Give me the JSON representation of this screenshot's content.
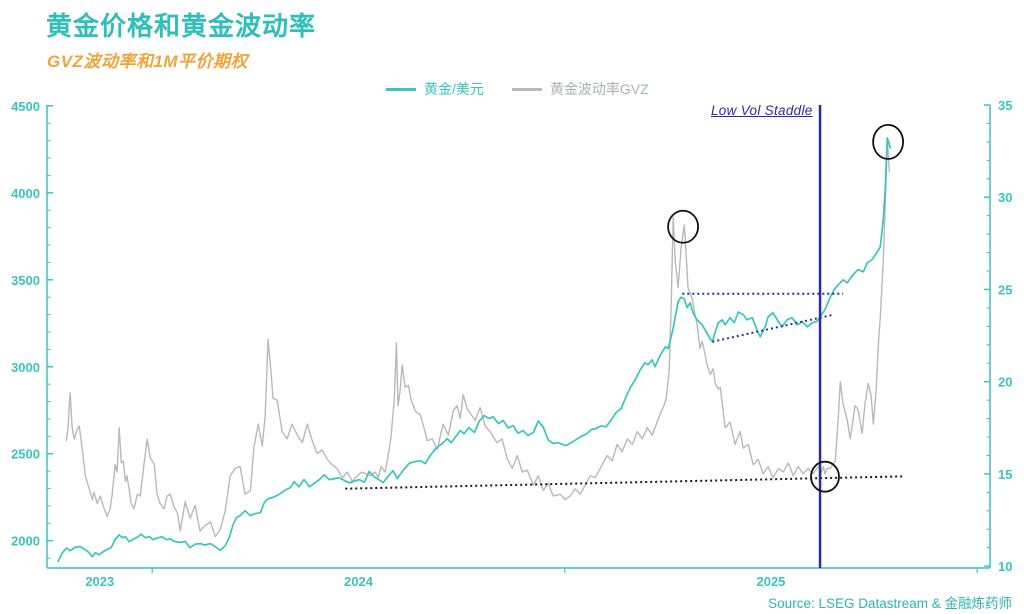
{
  "header": {
    "title": "黄金价格和黄金波动率",
    "subtitle": "GVZ波动率和1M平价期权"
  },
  "legend": {
    "items": [
      {
        "label": "黄金/美元",
        "color": "#3bc4bf",
        "text_color": "#3bc4bf"
      },
      {
        "label": "黄金波动率GVZ",
        "color": "#b9b9b9",
        "text_color": "#a9b2b2"
      }
    ]
  },
  "annotation_text": {
    "low_vol_label": "Low Vol Staddle"
  },
  "source": {
    "text": "Source: LSEG Datastream & 金融炼药师"
  },
  "colors": {
    "teal": "#2fbfba",
    "axis": "#3bc4bf",
    "gray_line": "#b9b9b9",
    "navy": "#2b2ba8",
    "black": "#1a1a1a",
    "orange": "#f0a43c"
  },
  "chart_data": {
    "type": "line",
    "title": "黄金价格和黄金波动率",
    "subtitle": "GVZ波动率和1M平价期权",
    "x_axis": {
      "range": [
        2023.745,
        2026.031
      ],
      "boundary_ticks": [
        2024,
        2025,
        2026
      ],
      "year_labels": [
        {
          "text": "2023",
          "at": 2023.873
        },
        {
          "text": "2024",
          "at": 2024.5
        },
        {
          "text": "2025",
          "at": 2025.5
        }
      ]
    },
    "left_axis": {
      "range": [
        1843,
        4505
      ],
      "major_ticks": [
        2000,
        2500,
        3000,
        3500,
        4000,
        4500
      ],
      "minor_start": 1900,
      "minor_step": 100
    },
    "right_axis": {
      "range": [
        9.9,
        35.0
      ],
      "major_ticks": [
        10,
        15,
        20,
        25,
        30,
        35
      ],
      "minor_start": 10,
      "minor_step": 1
    },
    "series": [
      {
        "name": "黄金波动率GVZ",
        "axis": "right",
        "color": "#b9b9b9",
        "width": 1.4,
        "x": [
          2023.792,
          2023.796,
          2023.801,
          2023.806,
          2023.811,
          2023.818,
          2023.823,
          2023.828,
          2023.838,
          2023.847,
          2023.855,
          2023.859,
          2023.867,
          2023.874,
          2023.884,
          2023.891,
          2023.898,
          2023.903,
          2023.91,
          2023.915,
          2023.92,
          2023.925,
          2023.93,
          2023.935,
          2023.939,
          2023.944,
          2023.949,
          2023.956,
          2023.964,
          2023.971,
          2023.981,
          2023.988,
          2023.995,
          2024.005,
          2024.012,
          2024.019,
          2024.029,
          2024.036,
          2024.044,
          2024.053,
          2024.061,
          2024.068,
          2024.08,
          2024.092,
          2024.104,
          2024.116,
          2024.128,
          2024.141,
          2024.153,
          2024.165,
          2024.177,
          2024.189,
          2024.201,
          2024.213,
          2024.225,
          2024.238,
          2024.247,
          2024.257,
          2024.267,
          2024.274,
          2024.281,
          2024.288,
          2024.293,
          2024.303,
          2024.315,
          2024.327,
          2024.339,
          2024.352,
          2024.364,
          2024.376,
          2024.388,
          2024.4,
          2024.412,
          2024.424,
          2024.436,
          2024.448,
          2024.461,
          2024.473,
          2024.485,
          2024.497,
          2024.509,
          2024.519,
          2024.528,
          2024.541,
          2024.548,
          2024.555,
          2024.565,
          2024.572,
          2024.579,
          2024.587,
          2024.592,
          2024.596,
          2024.601,
          2024.606,
          2024.613,
          2024.621,
          2024.628,
          2024.638,
          2024.65,
          2024.659,
          2024.667,
          2024.679,
          2024.691,
          2024.705,
          2024.718,
          2024.73,
          2024.739,
          2024.747,
          2024.754,
          2024.764,
          2024.771,
          2024.783,
          2024.795,
          2024.807,
          2024.819,
          2024.836,
          2024.848,
          2024.861,
          2024.873,
          2024.885,
          2024.897,
          2024.909,
          2024.924,
          2024.936,
          2024.948,
          2024.96,
          2024.972,
          2024.989,
          2025.001,
          2025.013,
          2025.025,
          2025.038,
          2025.05,
          2025.062,
          2025.074,
          2025.086,
          2025.103,
          2025.115,
          2025.127,
          2025.139,
          2025.152,
          2025.164,
          2025.176,
          2025.188,
          2025.2,
          2025.212,
          2025.224,
          2025.232,
          2025.239,
          2025.246,
          2025.253,
          2025.258,
          2025.263,
          2025.268,
          2025.275,
          2025.282,
          2025.29,
          2025.294,
          2025.299,
          2025.309,
          2025.316,
          2025.321,
          2025.328,
          2025.333,
          2025.341,
          2025.345,
          2025.353,
          2025.36,
          2025.365,
          2025.372,
          2025.377,
          2025.389,
          2025.401,
          2025.413,
          2025.425,
          2025.433,
          2025.445,
          2025.457,
          2025.469,
          2025.481,
          2025.493,
          2025.505,
          2025.518,
          2025.53,
          2025.542,
          2025.554,
          2025.566,
          2025.578,
          2025.59,
          2025.602,
          2025.615,
          2025.622,
          2025.627,
          2025.631,
          2025.636,
          2025.644,
          2025.656,
          2025.663,
          2025.668,
          2025.675,
          2025.685,
          2025.692,
          2025.704,
          2025.711,
          2025.721,
          2025.728,
          2025.736,
          2025.743,
          2025.748,
          2025.755,
          2025.76,
          2025.765,
          2025.772,
          2025.777,
          2025.782,
          2025.787
        ],
        "y": [
          16.8,
          17.5,
          19.4,
          17.5,
          16.9,
          17.4,
          17.6,
          16.8,
          14.9,
          14.2,
          13.6,
          14.0,
          13.4,
          13.8,
          13.1,
          12.7,
          13.1,
          13.9,
          15.5,
          15.1,
          17.5,
          15.6,
          15.7,
          14.6,
          14.9,
          14.2,
          13.4,
          13.1,
          13.9,
          13.8,
          15.7,
          16.9,
          15.9,
          15.5,
          13.9,
          13.4,
          13.1,
          13.8,
          13.9,
          13.2,
          12.9,
          11.9,
          13.5,
          12.6,
          13.3,
          11.9,
          12.2,
          12.4,
          11.6,
          12.0,
          13.0,
          14.9,
          15.3,
          15.4,
          13.9,
          14.1,
          16.5,
          17.7,
          16.5,
          18.2,
          22.3,
          20.5,
          19.1,
          19.0,
          17.3,
          16.9,
          17.7,
          17.1,
          16.7,
          17.7,
          16.8,
          16.1,
          16.3,
          15.8,
          15.5,
          15.3,
          14.8,
          15.1,
          14.6,
          14.9,
          15.1,
          15.0,
          14.9,
          15.1,
          14.8,
          15.4,
          15.1,
          16.0,
          17.0,
          19.0,
          22.1,
          18.7,
          19.5,
          20.9,
          19.7,
          19.8,
          19.0,
          18.4,
          18.2,
          17.5,
          16.8,
          16.9,
          16.3,
          17.7,
          17.1,
          18.4,
          18.7,
          18.0,
          19.3,
          18.5,
          18.3,
          17.9,
          18.6,
          17.6,
          17.3,
          16.7,
          16.9,
          15.8,
          15.3,
          16.0,
          15.1,
          15.2,
          14.4,
          14.9,
          14.1,
          14.5,
          13.8,
          13.9,
          13.6,
          13.8,
          14.2,
          13.9,
          14.4,
          14.9,
          14.8,
          15.3,
          16.0,
          15.7,
          16.6,
          16.2,
          16.9,
          16.6,
          17.3,
          16.9,
          17.5,
          17.1,
          17.8,
          18.3,
          18.6,
          19.1,
          20.5,
          24.0,
          28.9,
          26.5,
          25.1,
          27.2,
          28.5,
          27.0,
          25.1,
          24.5,
          23.6,
          23.1,
          21.8,
          22.2,
          21.4,
          20.9,
          20.4,
          20.7,
          19.9,
          19.6,
          19.7,
          17.5,
          17.8,
          16.6,
          17.3,
          16.4,
          16.6,
          15.5,
          15.8,
          15.0,
          15.4,
          14.8,
          15.3,
          15.1,
          15.6,
          14.9,
          15.4,
          15.0,
          15.3,
          15.0,
          15.4,
          15.1,
          15.4,
          15.0,
          15.3,
          15.3,
          15.7,
          18.0,
          20.0,
          18.8,
          17.9,
          16.9,
          18.7,
          18.5,
          17.2,
          18.8,
          19.9,
          19.2,
          17.7,
          19.5,
          21.9,
          23.5,
          26.5,
          29.5,
          33.2,
          31.4
        ]
      },
      {
        "name": "黄金/美元",
        "axis": "left",
        "color": "#3bc4bf",
        "width": 1.7,
        "x": [
          2023.772,
          2023.782,
          2023.792,
          2023.801,
          2023.813,
          2023.825,
          2023.838,
          2023.847,
          2023.855,
          2023.862,
          2023.872,
          2023.881,
          2023.891,
          2023.901,
          2023.91,
          2023.92,
          2023.927,
          2023.935,
          2023.944,
          2023.954,
          2023.964,
          2023.973,
          2023.983,
          2023.993,
          2024.002,
          2024.015,
          2024.024,
          2024.034,
          2024.044,
          2024.056,
          2024.068,
          2024.08,
          2024.092,
          2024.104,
          2024.116,
          2024.128,
          2024.141,
          2024.153,
          2024.165,
          2024.177,
          2024.187,
          2024.196,
          2024.204,
          2024.213,
          2024.225,
          2024.238,
          2024.25,
          2024.262,
          2024.272,
          2024.281,
          2024.291,
          2024.301,
          2024.31,
          2024.322,
          2024.335,
          2024.344,
          2024.356,
          2024.368,
          2024.381,
          2024.393,
          2024.405,
          2024.417,
          2024.429,
          2024.441,
          2024.453,
          2024.465,
          2024.478,
          2024.49,
          2024.502,
          2024.514,
          2024.526,
          2024.538,
          2024.55,
          2024.56,
          2024.572,
          2024.584,
          2024.594,
          2024.608,
          2024.623,
          2024.638,
          2024.65,
          2024.662,
          2024.674,
          2024.688,
          2024.703,
          2024.715,
          2024.725,
          2024.737,
          2024.747,
          2024.756,
          2024.768,
          2024.781,
          2024.793,
          2024.805,
          2024.817,
          2024.827,
          2024.839,
          2024.851,
          2024.863,
          2024.875,
          2024.887,
          2024.899,
          2024.911,
          2024.924,
          2024.936,
          2024.948,
          2024.96,
          2024.972,
          2024.984,
          2024.996,
          2025.003,
          2025.015,
          2025.027,
          2025.04,
          2025.052,
          2025.064,
          2025.076,
          2025.088,
          2025.1,
          2025.113,
          2025.125,
          2025.137,
          2025.149,
          2025.159,
          2025.171,
          2025.183,
          2025.195,
          2025.202,
          2025.212,
          2025.219,
          2025.232,
          2025.244,
          2025.251,
          2025.261,
          2025.268,
          2025.275,
          2025.282,
          2025.29,
          2025.297,
          2025.304,
          2025.311,
          2025.321,
          2025.333,
          2025.343,
          2025.353,
          2025.358,
          2025.365,
          2025.372,
          2025.382,
          2025.389,
          2025.401,
          2025.411,
          2025.421,
          2025.433,
          2025.442,
          2025.455,
          2025.467,
          2025.474,
          2025.486,
          2025.493,
          2025.505,
          2025.518,
          2025.527,
          2025.539,
          2025.551,
          2025.564,
          2025.576,
          2025.588,
          2025.6,
          2025.612,
          2025.619,
          2025.631,
          2025.644,
          2025.653,
          2025.663,
          2025.675,
          2025.685,
          2025.699,
          2025.711,
          2025.724,
          2025.733,
          2025.745,
          2025.758,
          2025.765,
          2025.772,
          2025.777,
          2025.782,
          2025.787,
          2025.789
        ],
        "y": [
          1880,
          1930,
          1958,
          1942,
          1962,
          1966,
          1948,
          1931,
          1908,
          1931,
          1920,
          1937,
          1950,
          1962,
          2006,
          2034,
          2017,
          2023,
          1994,
          2008,
          2020,
          2038,
          2017,
          2023,
          2006,
          2017,
          2023,
          2006,
          2010,
          1994,
          1990,
          1996,
          1960,
          1980,
          1983,
          1975,
          1983,
          1965,
          1945,
          1971,
          2020,
          2090,
          2132,
          2144,
          2172,
          2144,
          2155,
          2161,
          2220,
          2241,
          2248,
          2258,
          2270,
          2290,
          2305,
          2339,
          2310,
          2351,
          2310,
          2330,
          2351,
          2379,
          2351,
          2356,
          2362,
          2347,
          2333,
          2342,
          2351,
          2336,
          2398,
          2368,
          2350,
          2334,
          2370,
          2403,
          2357,
          2403,
          2445,
          2455,
          2460,
          2443,
          2490,
          2532,
          2558,
          2587,
          2564,
          2602,
          2633,
          2615,
          2650,
          2622,
          2688,
          2719,
          2702,
          2713,
          2673,
          2691,
          2648,
          2662,
          2618,
          2633,
          2605,
          2622,
          2688,
          2652,
          2580,
          2558,
          2564,
          2552,
          2547,
          2562,
          2580,
          2600,
          2612,
          2638,
          2645,
          2660,
          2655,
          2695,
          2738,
          2760,
          2830,
          2880,
          2925,
          2983,
          3023,
          3012,
          3040,
          3000,
          3069,
          3115,
          3105,
          3201,
          3287,
          3374,
          3400,
          3390,
          3340,
          3368,
          3310,
          3270,
          3241,
          3201,
          3160,
          3144,
          3201,
          3253,
          3270,
          3241,
          3282,
          3253,
          3315,
          3300,
          3270,
          3282,
          3205,
          3172,
          3230,
          3287,
          3310,
          3259,
          3230,
          3270,
          3282,
          3241,
          3259,
          3230,
          3253,
          3262,
          3287,
          3328,
          3402,
          3443,
          3471,
          3500,
          3483,
          3529,
          3558,
          3546,
          3598,
          3615,
          3661,
          3690,
          3845,
          4018,
          4316,
          4280,
          4259
        ]
      }
    ],
    "annotations": {
      "vline": {
        "x": 2025.619,
        "color": "#2b2ba8",
        "width": 2.5
      },
      "trendlines": [
        {
          "name": "resistance-dotted",
          "axis": "left",
          "x": [
            2025.285,
            2025.675
          ],
          "y": [
            3420,
            3420
          ],
          "color": "#2b2ba8"
        },
        {
          "name": "support-dotted",
          "axis": "left",
          "x": [
            2025.358,
            2025.651
          ],
          "y": [
            3144,
            3299
          ],
          "color": "#2b2ba8"
        },
        {
          "name": "vol-floor-dotted",
          "axis": "right",
          "x": [
            2024.468,
            2025.825
          ],
          "y": [
            14.2,
            14.87
          ],
          "color": "#1a1a1a"
        }
      ],
      "circles": [
        {
          "name": "gvz-april-spike-circle",
          "axis": "right",
          "x": 2025.287,
          "y": 28.4,
          "rx": 15,
          "ry": 16
        },
        {
          "name": "october-peak-circle",
          "axis": "right",
          "x": 2025.784,
          "y": 33.0,
          "rx": 15,
          "ry": 17
        },
        {
          "name": "low-vol-entry-circle",
          "axis": "right",
          "x": 2025.631,
          "y": 14.85,
          "rx": 14,
          "ry": 15
        }
      ]
    }
  }
}
